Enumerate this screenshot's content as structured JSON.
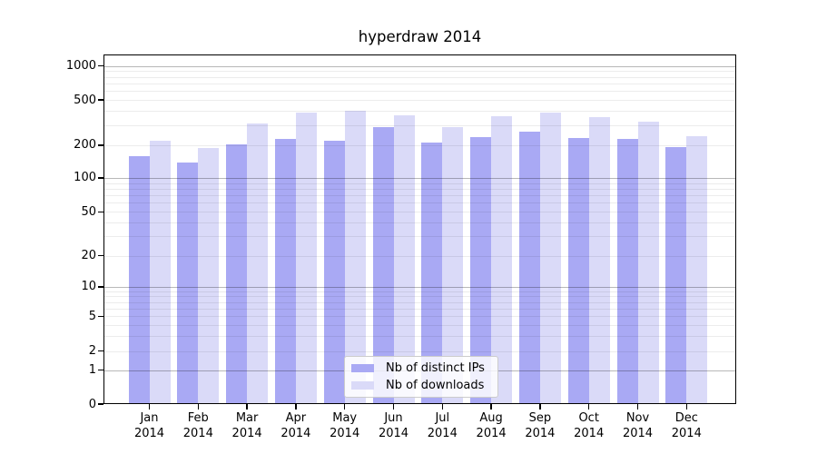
{
  "chart_data": {
    "type": "bar",
    "title": "hyperdraw 2014",
    "categories": [
      "Jan",
      "Feb",
      "Mar",
      "Apr",
      "May",
      "Jun",
      "Jul",
      "Aug",
      "Sep",
      "Oct",
      "Nov",
      "Dec"
    ],
    "year_label": "2014",
    "series": [
      {
        "name": "Nb of distinct IPs",
        "color": "#a9a9f4",
        "values": [
          158,
          140,
          205,
          228,
          221,
          286,
          210,
          236,
          265,
          230,
          229,
          193
        ]
      },
      {
        "name": "Nb of downloads",
        "color": "#dadaf8",
        "values": [
          220,
          190,
          310,
          390,
          400,
          365,
          291,
          358,
          390,
          350,
          320,
          242
        ]
      }
    ],
    "xlabel": "",
    "ylabel": "",
    "yscale": "symlog",
    "ylim": [
      0,
      1120
    ],
    "y_ticks": [
      0,
      1,
      2,
      5,
      10,
      20,
      50,
      100,
      200,
      500,
      1000
    ],
    "grid": "major and minor horizontal gridlines",
    "legend_position": "lower center"
  },
  "colors": {
    "background": "#ffffff",
    "bar_distinct_ips": "#a9a9f4",
    "bar_downloads": "#dadaf8",
    "major_grid": "#b9b9b9",
    "minor_grid": "#ededed",
    "axis": "#000000"
  }
}
